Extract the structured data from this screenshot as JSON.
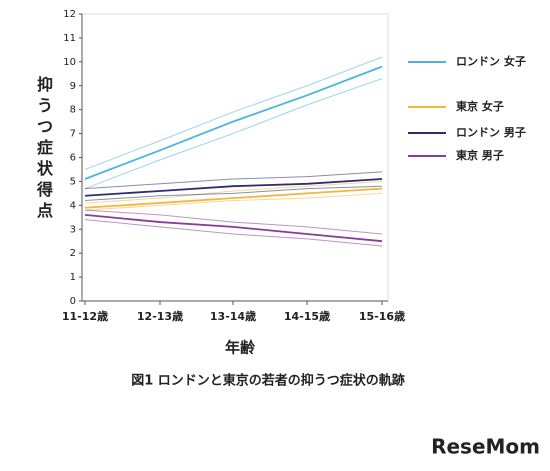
{
  "chart_data": {
    "type": "line",
    "y_label": "抑うつ症状得点",
    "x_label": "年齢",
    "caption": "図1 ロンドンと東京の若者の抑うつ症状の軌跡",
    "watermark": "ReseMom",
    "categories": [
      "11-12歳",
      "12-13歳",
      "13-14歳",
      "14-15歳",
      "15-16歳"
    ],
    "ylim": [
      0,
      12
    ],
    "yticks": [
      0,
      1,
      2,
      3,
      4,
      5,
      6,
      7,
      8,
      9,
      10,
      11,
      12
    ],
    "series": [
      {
        "name": "ロンドン 女子",
        "color": "#4ab3e0",
        "values": [
          5.1,
          6.3,
          7.5,
          8.6,
          9.8
        ],
        "ci_upper": [
          5.5,
          6.7,
          7.9,
          9.0,
          10.2
        ],
        "ci_lower": [
          4.7,
          5.9,
          7.0,
          8.2,
          9.3
        ]
      },
      {
        "name": "東京 女子",
        "color": "#f0b73a",
        "values": [
          3.9,
          4.1,
          4.3,
          4.5,
          4.7
        ],
        "ci_upper": [
          4.1,
          4.3,
          4.6,
          4.8,
          5.0
        ],
        "ci_lower": [
          3.8,
          4.0,
          4.2,
          4.3,
          4.5
        ]
      },
      {
        "name": "ロンドン 男子",
        "color": "#2d2d6e",
        "values": [
          4.4,
          4.6,
          4.8,
          4.9,
          5.1
        ],
        "ci_upper": [
          4.7,
          4.9,
          5.1,
          5.2,
          5.4
        ],
        "ci_lower": [
          4.2,
          4.4,
          4.5,
          4.7,
          4.8
        ]
      },
      {
        "name": "東京 男子",
        "color": "#8a3a9a",
        "values": [
          3.6,
          3.3,
          3.1,
          2.8,
          2.5
        ],
        "ci_upper": [
          3.8,
          3.6,
          3.3,
          3.1,
          2.8
        ],
        "ci_lower": [
          3.4,
          3.1,
          2.8,
          2.6,
          2.3
        ]
      }
    ]
  }
}
